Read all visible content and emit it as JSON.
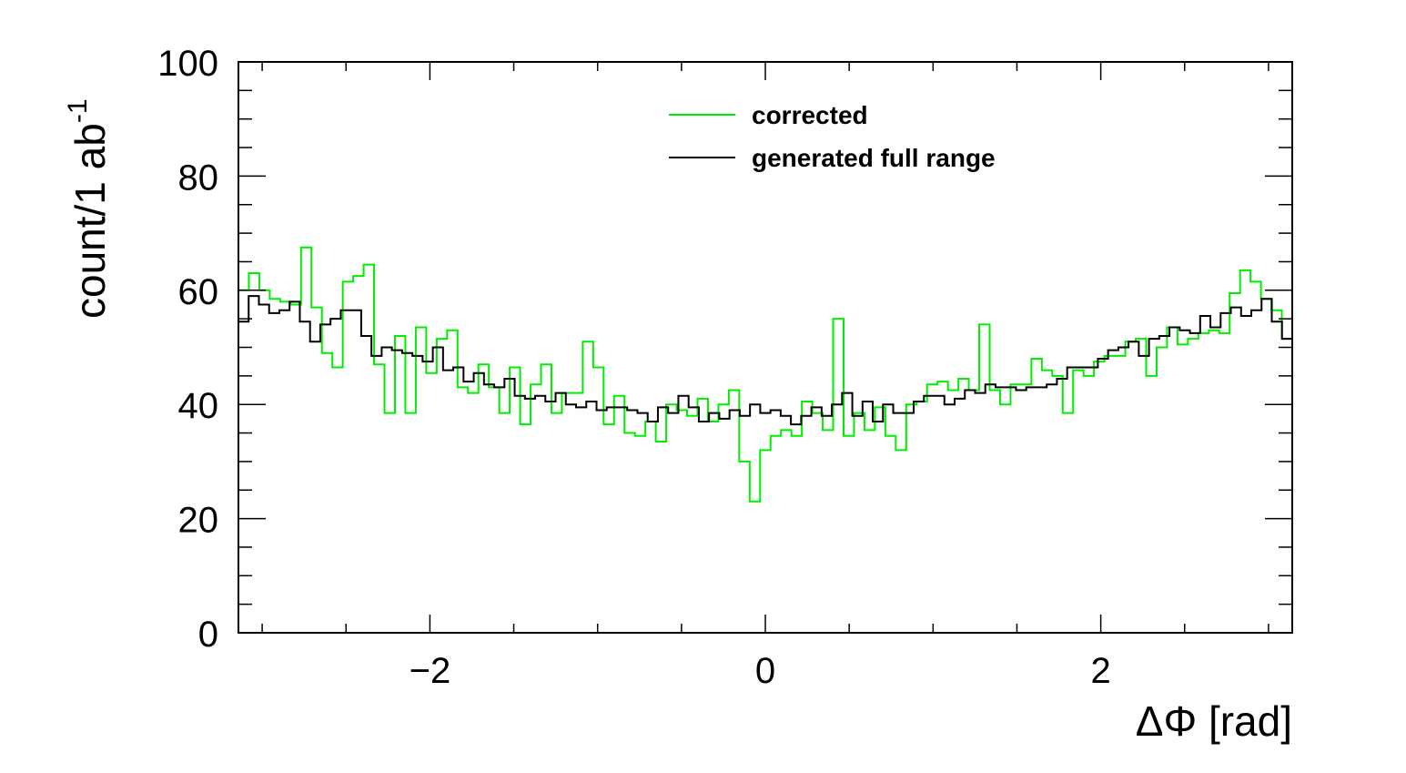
{
  "chart_data": {
    "type": "line",
    "style": "step-histogram",
    "xlabel": "ΔΦ [rad]",
    "ylabel": "count/1 ab",
    "ylabel_superscript": "-1",
    "xlim": [
      -3.1416,
      3.1416
    ],
    "ylim": [
      0,
      100
    ],
    "x_ticks": [
      -2,
      0,
      2
    ],
    "x_tick_labels": [
      "−2",
      "0",
      "2"
    ],
    "y_ticks": [
      0,
      20,
      40,
      60,
      80,
      100
    ],
    "y_tick_labels": [
      "0",
      "20",
      "40",
      "60",
      "80",
      "100"
    ],
    "grid": false,
    "legend_position": "top-center",
    "series": [
      {
        "name": "corrected",
        "color": "#00ee00",
        "values": [
          60,
          63,
          60,
          58.5,
          58,
          57.5,
          67.5,
          57,
          49,
          46.5,
          61.5,
          62.5,
          64.5,
          47,
          38.5,
          52,
          38.5,
          53.5,
          45.5,
          51.5,
          53,
          43,
          42,
          47,
          43,
          38.5,
          46.5,
          36.5,
          43.5,
          47,
          38.5,
          42,
          42,
          51,
          46.5,
          36.5,
          41.5,
          35,
          34.5,
          37,
          33.5,
          40,
          39,
          38,
          41,
          37,
          40,
          42.5,
          30,
          23,
          32,
          34.5,
          35.5,
          34.5,
          40.5,
          38.5,
          35.5,
          55,
          34.5,
          38.5,
          35.5,
          39.5,
          34.5,
          32,
          40,
          40.5,
          43.5,
          44,
          42.5,
          44.5,
          42.5,
          54,
          42.5,
          40,
          43.5,
          43.5,
          48,
          46,
          45,
          38.5,
          46,
          45,
          47.5,
          48.5,
          48.5,
          51,
          51.5,
          45,
          50,
          53.5,
          50.5,
          51.5,
          52.5,
          53,
          52.5,
          59.5,
          63.5,
          61.5,
          58.5,
          56.5,
          51.5
        ]
      },
      {
        "name": "generated full range",
        "color": "#000000",
        "values": [
          54.5,
          59,
          57.5,
          56,
          56.5,
          58,
          54.5,
          51,
          54,
          55,
          56.5,
          56.5,
          52,
          48.5,
          50,
          49.5,
          49,
          48.5,
          47.5,
          50,
          46,
          46.5,
          44,
          45.5,
          43.5,
          43,
          44.5,
          41.5,
          41,
          41.5,
          40.5,
          42,
          40,
          39.5,
          40.5,
          39,
          39.5,
          39.5,
          39,
          38.5,
          37,
          39.5,
          38.5,
          41.5,
          39.5,
          37,
          38.5,
          37.5,
          39,
          38,
          40,
          38.5,
          39,
          38,
          36.5,
          38,
          39.5,
          38,
          40,
          42,
          38,
          40.5,
          37,
          40,
          38.5,
          38.5,
          40.5,
          41.5,
          41.5,
          40,
          41,
          42.5,
          42,
          43.5,
          43,
          43,
          42.5,
          43,
          43,
          43.5,
          44.5,
          46.5,
          46.5,
          46.5,
          48,
          49.5,
          50,
          51,
          48.5,
          51.5,
          52,
          53.5,
          53,
          52.5,
          55.5,
          53.5,
          56,
          57,
          55.5,
          56.5,
          58.5,
          54.5,
          51.5
        ]
      }
    ]
  }
}
